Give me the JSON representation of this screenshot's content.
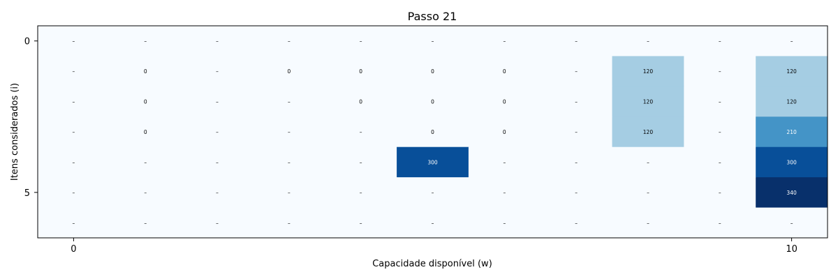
{
  "chart_data": {
    "type": "heatmap",
    "title": "Passo 21",
    "xlabel": "Capacidade disponível (w)",
    "ylabel": "Itens considerados (i)",
    "x_ticks": [
      0,
      10
    ],
    "y_ticks": [
      0,
      5
    ],
    "n_rows": 7,
    "n_cols": 11,
    "colormap": "Blues",
    "value_range": [
      0,
      340
    ],
    "empty_marker": "–",
    "cells": [
      [
        null,
        null,
        null,
        null,
        null,
        null,
        null,
        null,
        null,
        null,
        null
      ],
      [
        null,
        0,
        null,
        0,
        0,
        0,
        0,
        null,
        120,
        null,
        120
      ],
      [
        null,
        0,
        null,
        null,
        0,
        0,
        0,
        null,
        120,
        null,
        120
      ],
      [
        null,
        0,
        null,
        null,
        null,
        0,
        0,
        null,
        120,
        null,
        210
      ],
      [
        null,
        null,
        null,
        null,
        null,
        300,
        null,
        null,
        null,
        null,
        300
      ],
      [
        null,
        null,
        null,
        null,
        null,
        null,
        null,
        null,
        null,
        null,
        340
      ],
      [
        null,
        null,
        null,
        null,
        null,
        null,
        null,
        null,
        null,
        null,
        null
      ]
    ]
  }
}
